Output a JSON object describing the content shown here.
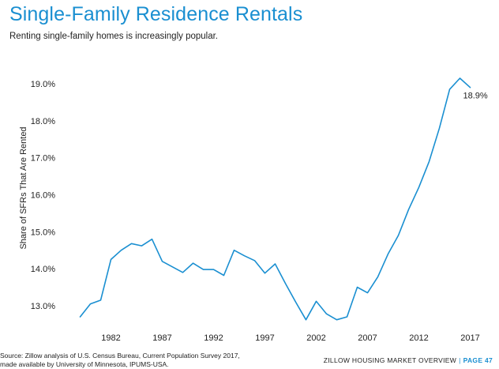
{
  "header": {
    "title": "Single-Family Residence Rentals",
    "subtitle": "Renting single-family homes is increasingly popular."
  },
  "footer": {
    "source_line1": "Source: Zillow analysis of U.S. Census Bureau, Current Population Survey 2017,",
    "source_line2": "made available by University of Minnesota, IPUMS-USA.",
    "report": "ZILLOW HOUSING MARKET OVERVIEW",
    "separator": "|",
    "page": "PAGE 47"
  },
  "colors": {
    "accent": "#1a8fd1",
    "line": "#1a8fd1",
    "text": "#222222"
  },
  "chart_data": {
    "type": "line",
    "title": "Single-Family Residence Rentals",
    "xlabel": "",
    "ylabel": "Share of SFRs That Are Rented",
    "xlim": [
      1977.5,
      2018.5
    ],
    "ylim": [
      12.55,
      19.45
    ],
    "x_ticks": [
      1982,
      1987,
      1992,
      1997,
      2002,
      2007,
      2012,
      2017
    ],
    "y_ticks": [
      13.0,
      14.0,
      15.0,
      16.0,
      17.0,
      18.0,
      19.0
    ],
    "y_tick_labels": [
      "13.0%",
      "14.0%",
      "15.0%",
      "16.0%",
      "17.0%",
      "18.0%",
      "19.0%"
    ],
    "grid": false,
    "legend": "none",
    "series": [
      {
        "name": "",
        "x": [
          1979,
          1980,
          1981,
          1982,
          1983,
          1984,
          1985,
          1986,
          1987,
          1988,
          1989,
          1990,
          1991,
          1992,
          1993,
          1994,
          1995,
          1996,
          1997,
          1998,
          1999,
          2000,
          2001,
          2002,
          2003,
          2004,
          2005,
          2006,
          2007,
          2008,
          2009,
          2010,
          2011,
          2012,
          2013,
          2014,
          2015,
          2016,
          2017
        ],
        "y": [
          12.7,
          13.05,
          13.15,
          14.25,
          14.5,
          14.68,
          14.62,
          14.8,
          14.2,
          14.05,
          13.9,
          14.15,
          13.98,
          13.98,
          13.82,
          14.5,
          14.35,
          14.22,
          13.88,
          14.13,
          13.6,
          13.1,
          12.62,
          13.12,
          12.78,
          12.62,
          12.7,
          13.5,
          13.35,
          13.78,
          14.4,
          14.9,
          15.6,
          16.2,
          16.9,
          17.8,
          18.85,
          19.15,
          18.9
        ]
      }
    ],
    "annotations": [
      {
        "x": 2017,
        "y": 18.9,
        "text": "18.9%"
      }
    ]
  }
}
